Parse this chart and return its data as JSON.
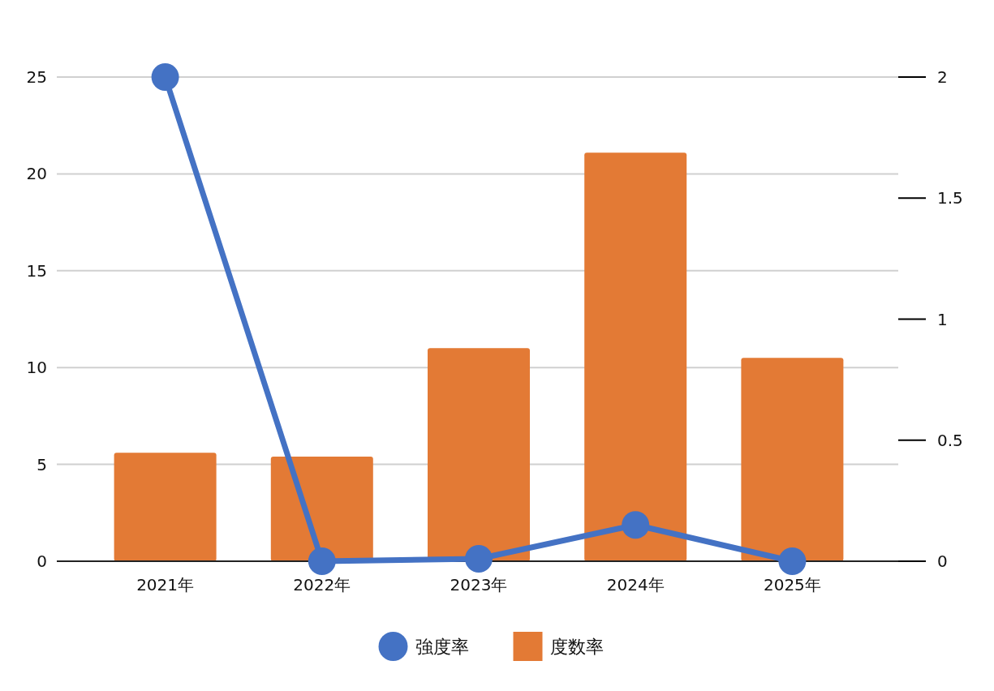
{
  "chart_data": {
    "type": "bar",
    "categories": [
      "2021年",
      "2022年",
      "2023年",
      "2024年",
      "2025年"
    ],
    "series": [
      {
        "name": "強度率",
        "type": "line",
        "axis": "y2",
        "color": "#4472c4",
        "marker": "circle",
        "values": [
          2.0,
          0,
          0.01,
          0.15,
          0
        ]
      },
      {
        "name": "度数率",
        "color": "#e37a35",
        "values": [
          5.6,
          5.4,
          11.0,
          21.1,
          10.5
        ]
      }
    ],
    "ylim": [
      0,
      25
    ],
    "yticks": [
      0,
      5,
      10,
      15,
      20,
      25
    ],
    "y2lim": [
      0,
      2
    ],
    "y2ticks": [
      0,
      0.5,
      1,
      1.5,
      2
    ],
    "grid": "y",
    "legend": "bottom"
  }
}
